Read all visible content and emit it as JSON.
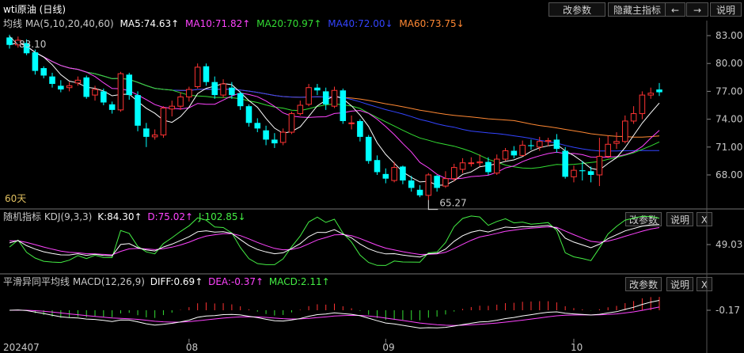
{
  "header": {
    "title": "wti原油 (日线)",
    "buttons": [
      "改参数",
      "隐藏主指标",
      "←",
      "→",
      "说明"
    ]
  },
  "ma_legend": {
    "label": "均线 MA(5,10,20,40,60)",
    "items": [
      {
        "text": "MA5:74.63↑",
        "color": "#ffffff"
      },
      {
        "text": "MA10:71.82↑",
        "color": "#ff44ff"
      },
      {
        "text": "MA20:70.97↑",
        "color": "#33dd33"
      },
      {
        "text": "MA40:72.00↓",
        "color": "#3344ff"
      },
      {
        "text": "MA60:73.75↓",
        "color": "#ff8833"
      }
    ]
  },
  "price_axis": [
    "83.00",
    "80.00",
    "77.00",
    "74.00",
    "71.00",
    "68.00"
  ],
  "annotations": {
    "high": "83.10",
    "low": "65.27",
    "period": "60天"
  },
  "kdj_panel": {
    "label": "随机指标 KDJ(9,3,3)",
    "k": {
      "text": "K:84.30↑",
      "color": "#ffffff"
    },
    "d": {
      "text": "D:75.02↑",
      "color": "#ff44ff"
    },
    "j": {
      "text": "J:102.85↓",
      "color": "#44ee44"
    },
    "axis": "49.03",
    "buttons": [
      "改参数",
      "说明",
      "X"
    ]
  },
  "macd_panel": {
    "label": "平滑异同平均线 MACD(12,26,9)",
    "diff": {
      "text": "DIFF:0.69↑",
      "color": "#ffffff"
    },
    "dea": {
      "text": "DEA:-0.37↑",
      "color": "#ff44ff"
    },
    "macd": {
      "text": "MACD:2.11↑",
      "color": "#44ee44"
    },
    "axis": "-0.17",
    "buttons": [
      "改参数",
      "说明",
      "X"
    ]
  },
  "date_axis": [
    "202407",
    "08",
    "09",
    "10"
  ],
  "colors": {
    "up": "#ff3333",
    "down": "#00ffff",
    "bg": "#000000"
  },
  "chart_data": {
    "type": "candlestick",
    "ylim": [
      65,
      84
    ],
    "candles": [
      [
        82.8,
        82.0,
        83.1,
        81.6
      ],
      [
        82.0,
        82.5,
        82.9,
        81.7
      ],
      [
        82.2,
        81.1,
        82.6,
        80.9
      ],
      [
        81.2,
        79.2,
        81.5,
        78.8
      ],
      [
        79.5,
        78.7,
        79.7,
        78.4
      ],
      [
        78.6,
        77.8,
        79.0,
        77.4
      ],
      [
        77.6,
        77.2,
        78.2,
        76.9
      ],
      [
        77.4,
        77.6,
        78.0,
        77.0
      ],
      [
        77.9,
        78.2,
        78.6,
        77.6
      ],
      [
        78.5,
        76.4,
        78.7,
        76.2
      ],
      [
        76.6,
        77.2,
        77.6,
        76.0
      ],
      [
        77.0,
        75.8,
        77.3,
        75.5
      ],
      [
        75.6,
        75.0,
        75.9,
        74.6
      ],
      [
        75.0,
        78.9,
        79.1,
        74.8
      ],
      [
        78.8,
        76.6,
        79.0,
        76.1
      ],
      [
        76.6,
        73.3,
        77.0,
        72.7
      ],
      [
        73.0,
        72.1,
        73.6,
        71.0
      ],
      [
        72.1,
        72.3,
        72.9,
        71.8
      ],
      [
        72.3,
        75.2,
        75.4,
        72.0
      ],
      [
        75.1,
        75.4,
        76.0,
        74.3
      ],
      [
        75.4,
        76.4,
        76.9,
        75.0
      ],
      [
        76.4,
        77.2,
        77.5,
        75.9
      ],
      [
        77.5,
        79.6,
        80.0,
        77.3
      ],
      [
        79.7,
        78.0,
        80.0,
        77.6
      ],
      [
        78.0,
        76.6,
        78.6,
        76.2
      ],
      [
        76.6,
        77.8,
        78.3,
        76.3
      ],
      [
        77.4,
        76.6,
        78.0,
        76.2
      ],
      [
        76.8,
        75.4,
        77.0,
        75.0
      ],
      [
        75.4,
        73.6,
        75.6,
        73.2
      ],
      [
        73.6,
        73.0,
        74.1,
        72.6
      ],
      [
        72.8,
        71.8,
        73.3,
        71.2
      ],
      [
        71.8,
        71.4,
        72.5,
        70.9
      ],
      [
        71.5,
        72.6,
        73.0,
        71.2
      ],
      [
        72.6,
        74.6,
        74.8,
        72.4
      ],
      [
        74.6,
        75.5,
        76.0,
        74.4
      ],
      [
        75.6,
        77.4,
        77.8,
        75.4
      ],
      [
        77.4,
        77.1,
        77.8,
        76.6
      ],
      [
        77.0,
        75.6,
        77.4,
        75.0
      ],
      [
        75.4,
        77.1,
        77.5,
        75.2
      ],
      [
        77.1,
        73.8,
        77.3,
        73.5
      ],
      [
        73.6,
        73.6,
        74.4,
        72.9
      ],
      [
        73.8,
        72.1,
        74.0,
        71.6
      ],
      [
        72.1,
        69.5,
        72.3,
        69.2
      ],
      [
        69.6,
        68.3,
        70.1,
        68.0
      ],
      [
        68.1,
        67.6,
        68.7,
        67.1
      ],
      [
        67.4,
        68.8,
        69.4,
        67.2
      ],
      [
        68.9,
        67.4,
        69.0,
        67.0
      ],
      [
        67.4,
        66.6,
        67.9,
        66.2
      ],
      [
        66.4,
        65.8,
        66.9,
        65.6
      ],
      [
        65.8,
        68.0,
        68.2,
        65.3
      ],
      [
        67.9,
        66.6,
        68.0,
        66.2
      ],
      [
        66.8,
        67.6,
        68.4,
        66.6
      ],
      [
        67.6,
        68.8,
        69.2,
        67.3
      ],
      [
        68.6,
        69.3,
        69.8,
        68.2
      ],
      [
        69.3,
        69.3,
        69.9,
        68.9
      ],
      [
        69.3,
        69.4,
        70.2,
        68.9
      ],
      [
        69.4,
        68.3,
        69.9,
        68.0
      ],
      [
        68.2,
        69.7,
        70.2,
        68.0
      ],
      [
        69.7,
        70.6,
        70.9,
        69.5
      ],
      [
        70.6,
        70.1,
        71.1,
        69.8
      ],
      [
        70.1,
        71.2,
        71.7,
        70.0
      ],
      [
        71.2,
        71.1,
        71.8,
        70.7
      ],
      [
        71.0,
        71.6,
        72.1,
        70.6
      ],
      [
        71.6,
        71.7,
        72.0,
        71.1
      ],
      [
        71.8,
        70.8,
        72.4,
        70.4
      ],
      [
        70.6,
        67.8,
        71.0,
        67.6
      ],
      [
        67.8,
        68.5,
        69.0,
        67.2
      ],
      [
        68.5,
        68.4,
        69.5,
        67.4
      ],
      [
        68.4,
        68.0,
        68.9,
        67.2
      ],
      [
        68.0,
        70.0,
        72.0,
        66.8
      ],
      [
        70.0,
        71.3,
        72.2,
        69.8
      ],
      [
        71.4,
        71.6,
        72.6,
        70.8
      ],
      [
        71.6,
        73.8,
        74.4,
        71.4
      ],
      [
        73.8,
        74.6,
        75.4,
        73.5
      ],
      [
        74.6,
        76.6,
        77.0,
        74.0
      ],
      [
        76.6,
        76.8,
        77.4,
        76.2
      ],
      [
        77.2,
        76.9,
        77.9,
        76.5
      ]
    ]
  }
}
